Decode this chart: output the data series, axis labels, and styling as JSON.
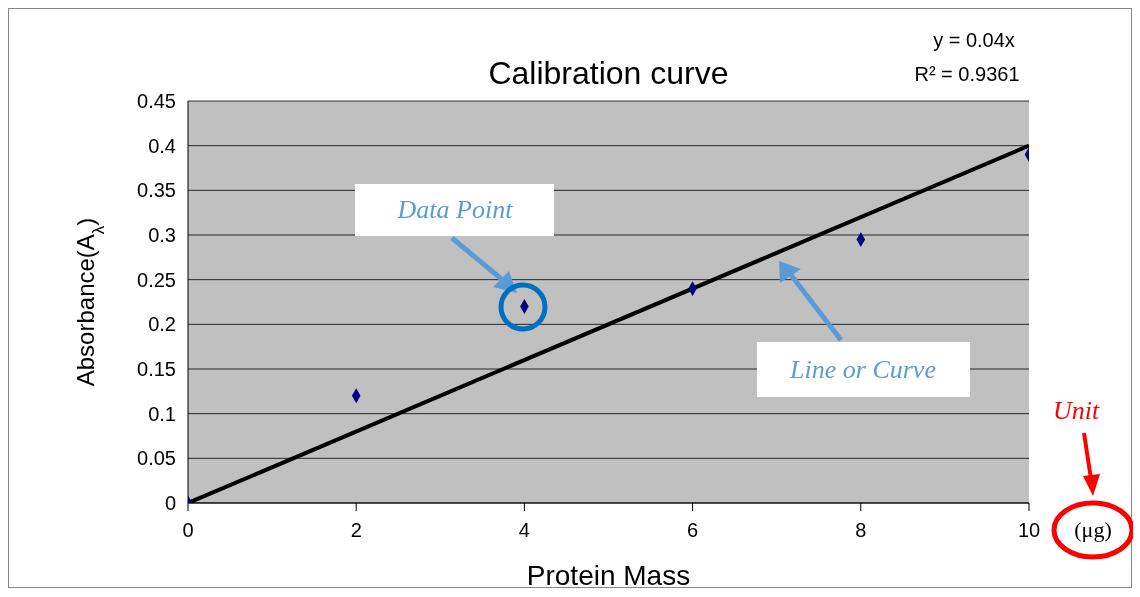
{
  "chart_data": {
    "type": "scatter",
    "title": "Calibration curve",
    "xlabel": "Protein Mass",
    "ylabel": "Absorbance(A$_{λ}$)",
    "series": [
      {
        "type": "scatter",
        "color": "#000080",
        "marker": "diamond",
        "x": [
          0,
          2,
          4,
          6,
          8,
          10
        ],
        "values": [
          0,
          0.12,
          0.22,
          0.24,
          0.295,
          0.39
        ]
      },
      {
        "type": "line",
        "color": "#000000",
        "marker": "none",
        "line_style": "solid",
        "x": [
          0,
          10
        ],
        "values": [
          0,
          0.4
        ]
      }
    ],
    "xlim": [
      0,
      10
    ],
    "xticks": [
      0,
      2,
      4,
      6,
      8,
      10
    ],
    "ylim": [
      0,
      0.45
    ],
    "yticks": [
      0,
      0.05,
      0.1,
      0.15,
      0.2,
      0.25,
      0.3,
      0.35,
      0.4,
      0.45
    ],
    "grid": "y",
    "annotations": [
      "y = 0.04x",
      "R² = 0.9361",
      "Data Point",
      "Line or Curve",
      "Unit",
      "(μg)"
    ]
  }
}
